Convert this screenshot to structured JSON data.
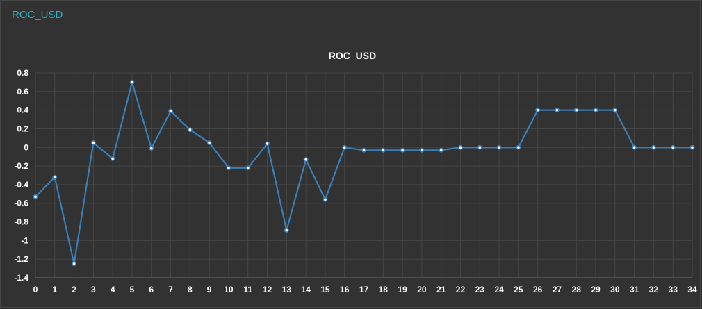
{
  "panel": {
    "title": "ROC_USD"
  },
  "colors": {
    "background": "#323232",
    "panel_title": "#2bb3c8",
    "series": "#3a7fb8",
    "grid": "#464646",
    "text": "#ffffff"
  },
  "chart_data": {
    "type": "line",
    "title": "ROC_USD",
    "xlabel": "",
    "ylabel": "",
    "grid": true,
    "x": [
      0,
      1,
      2,
      3,
      4,
      5,
      6,
      7,
      8,
      9,
      10,
      11,
      12,
      13,
      14,
      15,
      16,
      17,
      18,
      19,
      20,
      21,
      22,
      23,
      24,
      25,
      26,
      27,
      28,
      29,
      30,
      31,
      32,
      33,
      34
    ],
    "series": [
      {
        "values": [
          -0.53,
          -0.32,
          -1.25,
          0.05,
          -0.12,
          0.7,
          -0.01,
          0.39,
          0.19,
          0.05,
          -0.22,
          -0.22,
          0.04,
          -0.89,
          -0.13,
          -0.56,
          0.0,
          -0.03,
          -0.03,
          -0.03,
          -0.03,
          -0.03,
          0.0,
          0.0,
          0.0,
          0.0,
          0.4,
          0.4,
          0.4,
          0.4,
          0.4,
          0.0,
          0.0,
          0.0,
          0.0
        ]
      }
    ],
    "yticks": [
      0.8,
      0.6,
      0.4,
      0.2,
      0,
      -0.2,
      -0.4,
      -0.6,
      -0.8,
      -1,
      -1.2,
      -1.4
    ],
    "ylim": [
      -1.4,
      0.8
    ],
    "xlim": [
      0,
      34
    ]
  }
}
